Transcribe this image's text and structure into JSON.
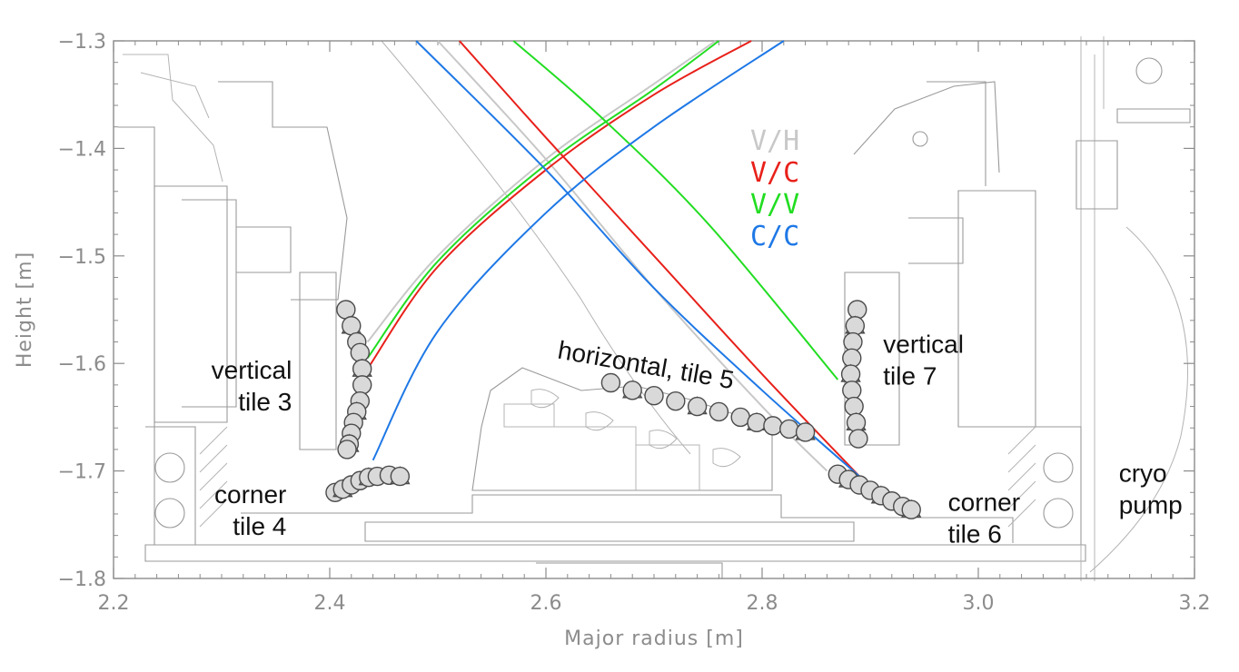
{
  "chart_data": {
    "type": "scatter",
    "xlabel": "Major radius [m]",
    "ylabel": "Height [m]",
    "xlim": [
      2.2,
      3.2
    ],
    "ylim": [
      -1.8,
      -1.3
    ],
    "xticks": [
      {
        "value": 2.2,
        "label": "2.2"
      },
      {
        "value": 2.4,
        "label": "2.4"
      },
      {
        "value": 2.6,
        "label": "2.6"
      },
      {
        "value": 2.8,
        "label": "2.8"
      },
      {
        "value": 3.0,
        "label": "3.0"
      },
      {
        "value": 3.2,
        "label": "3.2"
      }
    ],
    "yticks": [
      {
        "value": -1.3,
        "label": "−1.3"
      },
      {
        "value": -1.4,
        "label": "−1.4"
      },
      {
        "value": -1.5,
        "label": "−1.5"
      },
      {
        "value": -1.6,
        "label": "−1.6"
      },
      {
        "value": -1.7,
        "label": "−1.7"
      },
      {
        "value": -1.8,
        "label": "−1.8"
      }
    ],
    "grid": false,
    "legend_position": "top-center",
    "series": [
      {
        "name": "V/H",
        "color": "#c8c8c8",
        "legs": [
          [
            [
              2.435,
              -1.58
            ],
            [
              2.5,
              -1.5
            ],
            [
              2.6,
              -1.41
            ],
            [
              2.7,
              -1.34
            ],
            [
              2.757,
              -1.3
            ]
          ],
          [
            [
              2.5,
              -1.3
            ],
            [
              2.6,
              -1.41
            ],
            [
              2.7,
              -1.53
            ],
            [
              2.8,
              -1.64
            ],
            [
              2.86,
              -1.7
            ]
          ]
        ]
      },
      {
        "name": "V/C",
        "color": "#e8201a",
        "legs": [
          [
            [
              2.435,
              -1.605
            ],
            [
              2.5,
              -1.51
            ],
            [
              2.6,
              -1.42
            ],
            [
              2.7,
              -1.35
            ],
            [
              2.79,
              -1.3
            ]
          ],
          [
            [
              2.52,
              -1.3
            ],
            [
              2.6,
              -1.39
            ],
            [
              2.7,
              -1.5
            ],
            [
              2.8,
              -1.61
            ],
            [
              2.89,
              -1.705
            ]
          ]
        ]
      },
      {
        "name": "V/V",
        "color": "#22dd22",
        "legs": [
          [
            [
              2.435,
              -1.595
            ],
            [
              2.5,
              -1.505
            ],
            [
              2.6,
              -1.415
            ],
            [
              2.7,
              -1.345
            ],
            [
              2.76,
              -1.3
            ]
          ],
          [
            [
              2.57,
              -1.3
            ],
            [
              2.65,
              -1.37
            ],
            [
              2.75,
              -1.47
            ],
            [
              2.87,
              -1.615
            ]
          ]
        ]
      },
      {
        "name": "C/C",
        "color": "#1e78e6",
        "legs": [
          [
            [
              2.44,
              -1.69
            ],
            [
              2.5,
              -1.57
            ],
            [
              2.6,
              -1.46
            ],
            [
              2.7,
              -1.38
            ],
            [
              2.82,
              -1.3
            ]
          ],
          [
            [
              2.48,
              -1.3
            ],
            [
              2.6,
              -1.42
            ],
            [
              2.7,
              -1.53
            ],
            [
              2.8,
              -1.625
            ],
            [
              2.89,
              -1.705
            ]
          ]
        ]
      }
    ],
    "point_groups": [
      {
        "tile": "vertical tile 3",
        "points": [
          [
            2.415,
            -1.55
          ],
          [
            2.42,
            -1.565
          ],
          [
            2.425,
            -1.58
          ],
          [
            2.428,
            -1.59
          ],
          [
            2.43,
            -1.605
          ],
          [
            2.43,
            -1.62
          ],
          [
            2.428,
            -1.635
          ],
          [
            2.425,
            -1.645
          ],
          [
            2.422,
            -1.655
          ],
          [
            2.42,
            -1.665
          ],
          [
            2.418,
            -1.675
          ],
          [
            2.416,
            -1.68
          ]
        ]
      },
      {
        "tile": "corner tile 4",
        "points": [
          [
            2.405,
            -1.72
          ],
          [
            2.412,
            -1.717
          ],
          [
            2.42,
            -1.713
          ],
          [
            2.428,
            -1.709
          ],
          [
            2.436,
            -1.706
          ],
          [
            2.444,
            -1.705
          ],
          [
            2.455,
            -1.704
          ],
          [
            2.465,
            -1.705
          ]
        ]
      },
      {
        "tile": "horizontal, tile 5",
        "points": [
          [
            2.66,
            -1.618
          ],
          [
            2.68,
            -1.625
          ],
          [
            2.7,
            -1.63
          ],
          [
            2.72,
            -1.635
          ],
          [
            2.74,
            -1.64
          ],
          [
            2.76,
            -1.645
          ],
          [
            2.78,
            -1.65
          ],
          [
            2.795,
            -1.655
          ],
          [
            2.81,
            -1.658
          ],
          [
            2.825,
            -1.661
          ],
          [
            2.84,
            -1.664
          ]
        ]
      },
      {
        "tile": "vertical tile 7",
        "points": [
          [
            2.888,
            -1.55
          ],
          [
            2.886,
            -1.565
          ],
          [
            2.884,
            -1.58
          ],
          [
            2.883,
            -1.595
          ],
          [
            2.882,
            -1.61
          ],
          [
            2.883,
            -1.625
          ],
          [
            2.885,
            -1.64
          ],
          [
            2.887,
            -1.655
          ],
          [
            2.889,
            -1.67
          ]
        ]
      },
      {
        "tile": "corner tile 6",
        "points": [
          [
            2.87,
            -1.703
          ],
          [
            2.88,
            -1.708
          ],
          [
            2.89,
            -1.713
          ],
          [
            2.9,
            -1.718
          ],
          [
            2.91,
            -1.723
          ],
          [
            2.92,
            -1.728
          ],
          [
            2.93,
            -1.733
          ],
          [
            2.938,
            -1.736
          ]
        ]
      }
    ],
    "point_color": "#d9d9d9",
    "point_stroke": "#4a4a4a",
    "annotations": [
      {
        "lines": [
          "vertical",
          "tile 3"
        ],
        "x": 2.365,
        "y": -1.614,
        "align": "end"
      },
      {
        "lines": [
          "corner",
          "tile 4"
        ],
        "x": 2.36,
        "y": -1.73,
        "align": "end"
      },
      {
        "lines": [
          "horizontal, tile 5"
        ],
        "x": 2.61,
        "y": -1.595,
        "align": "start",
        "rotate": 10
      },
      {
        "lines": [
          "vertical",
          "tile 7"
        ],
        "x": 2.912,
        "y": -1.59,
        "align": "start"
      },
      {
        "lines": [
          "corner",
          "tile 6"
        ],
        "x": 2.972,
        "y": -1.737,
        "align": "start"
      },
      {
        "lines": [
          "cryo",
          "pump"
        ],
        "x": 3.13,
        "y": -1.71,
        "align": "start"
      }
    ]
  }
}
